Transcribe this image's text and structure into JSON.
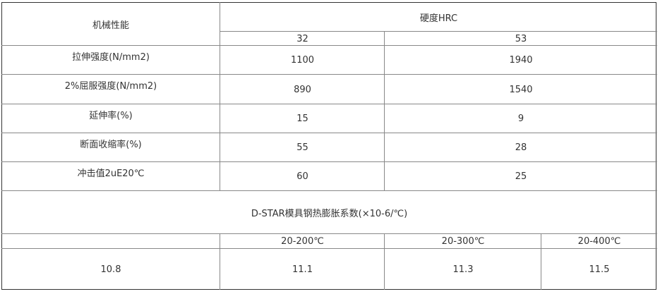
{
  "table": {
    "header_label": "机械性能",
    "hardness_header": "硬度HRC",
    "hardness_values": [
      "32",
      "53"
    ],
    "rows": [
      {
        "label": "拉伸强度(N/mm2)",
        "v32": "1100",
        "v53": "1940"
      },
      {
        "label": "2%屈服强度(N/mm2)",
        "v32": "890",
        "v53": "1540"
      },
      {
        "label": "延伸率(%)",
        "v32": "15",
        "v53": "9"
      },
      {
        "label": "断面收缩率(%)",
        "v32": "55",
        "v53": "28"
      },
      {
        "label": "冲击值2uE20℃",
        "v32": "60",
        "v53": "25"
      }
    ]
  },
  "expansion": {
    "title": "D-STAR模具钢热膨胀系数(×10-6/℃)",
    "headers": [
      "",
      "20-200℃",
      "20-300℃",
      "20-400℃"
    ],
    "values": [
      "10.8",
      "11.1",
      "11.3",
      "11.5"
    ]
  }
}
